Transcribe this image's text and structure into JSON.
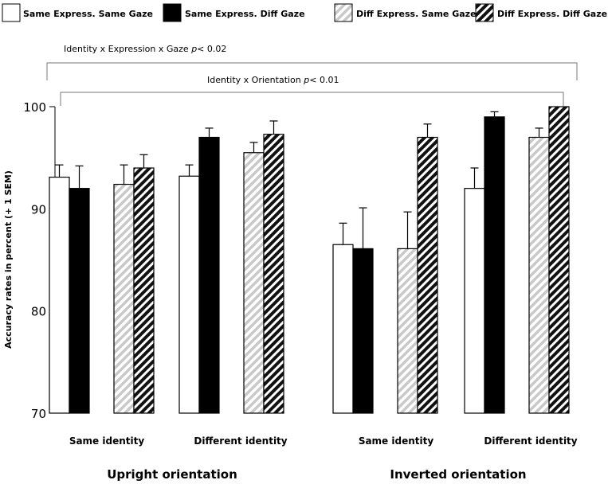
{
  "chart_data": {
    "type": "bar",
    "ylabel": "Accuracy rates in percent (+ 1 SEM)",
    "ylim": [
      70,
      100
    ],
    "yticks": [
      "70",
      "80",
      "90",
      "100"
    ],
    "legend": {
      "placement": "top",
      "entries": [
        {
          "label": "Same Express. Same Gaze",
          "style": "white"
        },
        {
          "label": "Same Express. Diff Gaze",
          "style": "black"
        },
        {
          "label": "Diff Express. Same Gaze",
          "style": "gray-hatch"
        },
        {
          "label": "Diff Express. Diff Gaze",
          "style": "black-hatch"
        }
      ]
    },
    "groups": [
      {
        "orientation": "Upright orientation",
        "identity": "Same identity",
        "values": [
          93.1,
          92.0,
          92.4,
          94.0
        ],
        "errors": [
          1.2,
          2.2,
          1.9,
          1.3
        ]
      },
      {
        "orientation": "Upright orientation",
        "identity": "Different identity",
        "values": [
          93.2,
          97.0,
          95.5,
          97.3
        ],
        "errors": [
          1.1,
          0.9,
          1.0,
          1.3
        ]
      },
      {
        "orientation": "Inverted orientation",
        "identity": "Same identity",
        "values": [
          86.5,
          86.1,
          86.1,
          97.0
        ],
        "errors": [
          2.1,
          4.0,
          3.6,
          1.3
        ]
      },
      {
        "orientation": "Inverted orientation",
        "identity": "Different identity",
        "values": [
          92.0,
          99.0,
          97.0,
          100.0
        ],
        "errors": [
          2.0,
          0.5,
          0.9,
          0.0
        ]
      }
    ],
    "orientation_labels": [
      "Upright orientation",
      "Inverted orientation"
    ],
    "annotations": [
      {
        "text": "Identity x Expression x Gaze ",
        "p": "p",
        "rest": "< 0.02"
      },
      {
        "text": "Identity x Orientation ",
        "p": "p",
        "rest": "< 0.01"
      }
    ]
  }
}
